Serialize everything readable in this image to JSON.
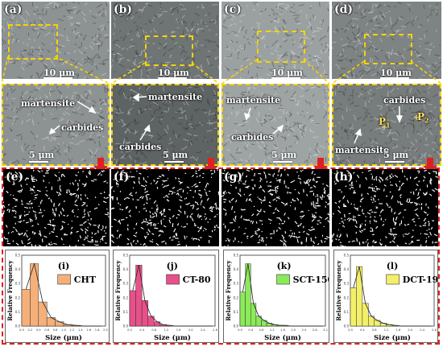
{
  "figure": {
    "panels_top": [
      {
        "label": "(a)",
        "scale": "10 μm"
      },
      {
        "label": "(b)",
        "scale": "10 μm"
      },
      {
        "label": "(c)",
        "scale": "10 μm"
      },
      {
        "label": "(d)",
        "scale": "10 μm"
      }
    ],
    "panels_zoom": [
      {
        "scale": "5 μm",
        "annotations": [
          "martensite",
          "carbides"
        ]
      },
      {
        "scale": "5 μm",
        "annotations": [
          "martensite",
          "carbides"
        ]
      },
      {
        "scale": "5 μm",
        "annotations": [
          "martensite",
          "carbides"
        ]
      },
      {
        "scale": "5 μm",
        "annotations": [
          "carbides",
          "martensite",
          "P",
          "P",
          "2",
          "1"
        ]
      }
    ],
    "panels_binary": [
      {
        "label": "(e)"
      },
      {
        "label": "(f)"
      },
      {
        "label": "(g)"
      },
      {
        "label": "(h)"
      }
    ],
    "colors": {
      "zoom_box": "#f5d400",
      "dashed_frame": "#e02020",
      "arrow": "#e02020"
    }
  },
  "chart_data": [
    {
      "type": "bar",
      "panel": "(i)",
      "legend": "CHT",
      "color": "#f5b07a",
      "xlabel": "Size (μm)",
      "ylabel": "Relative Frequency",
      "xticks": [
        "0.0",
        "0.2",
        "0.4",
        "0.6",
        "0.8",
        "1.0",
        "1.2",
        "1.4",
        "1.6",
        "1.8",
        "2.0"
      ],
      "yticks": [
        "0.0",
        "0.1",
        "0.2",
        "0.3",
        "0.4",
        "0.5"
      ],
      "xlim": [
        0,
        2.0
      ],
      "ylim": [
        0,
        0.5
      ],
      "bin_width": 0.2,
      "values": [
        0.26,
        0.44,
        0.17,
        0.06,
        0.03,
        0.01,
        0.005,
        0,
        0,
        0
      ]
    },
    {
      "type": "bar",
      "panel": "(j)",
      "legend": "CT-80",
      "color": "#e8508a",
      "xlabel": "Size (μm)",
      "ylabel": "Relative Frequency",
      "xticks": [
        "0.0",
        "0.4",
        "0.8",
        "1.2",
        "1.6",
        "2.0",
        "2.4",
        "2.8"
      ],
      "yticks": [
        "0.0",
        "0.1",
        "0.2",
        "0.3",
        "0.4",
        "0.5"
      ],
      "xlim": [
        0,
        2.8
      ],
      "ylim": [
        0,
        0.5
      ],
      "bin_width": 0.2,
      "values": [
        0.25,
        0.43,
        0.18,
        0.07,
        0.03,
        0.01,
        0.005,
        0,
        0,
        0,
        0,
        0,
        0,
        0
      ]
    },
    {
      "type": "bar",
      "panel": "(k)",
      "legend": "SCT-150",
      "color": "#8cea5a",
      "xlabel": "Size (μm)",
      "ylabel": "Relative Frequency",
      "xticks": [
        "0.0",
        "0.4",
        "0.8",
        "1.2",
        "1.6",
        "2.0",
        "2.4",
        "2.8",
        "3.2"
      ],
      "yticks": [
        "0.0",
        "0.1",
        "0.2",
        "0.3",
        "0.4",
        "0.5"
      ],
      "xlim": [
        0,
        3.2
      ],
      "ylim": [
        0,
        0.5
      ],
      "bin_width": 0.2,
      "values": [
        0.24,
        0.44,
        0.16,
        0.07,
        0.04,
        0.02,
        0.01,
        0.005,
        0.005,
        0,
        0,
        0,
        0,
        0,
        0,
        0
      ]
    },
    {
      "type": "bar",
      "panel": "(l)",
      "legend": "DCT-196",
      "color": "#f3ef6a",
      "xlabel": "Size (μm)",
      "ylabel": "Relative Frequency",
      "xticks": [
        "0.0",
        "0.4",
        "0.8",
        "1.2",
        "1.6",
        "2.0",
        "2.4",
        "2.8"
      ],
      "yticks": [
        "0.0",
        "0.1",
        "0.2",
        "0.3",
        "0.4",
        "0.5"
      ],
      "xlim": [
        0,
        2.8
      ],
      "ylim": [
        0,
        0.5
      ],
      "bin_width": 0.2,
      "values": [
        0.27,
        0.42,
        0.16,
        0.07,
        0.04,
        0.02,
        0.01,
        0.005,
        0,
        0,
        0,
        0,
        0,
        0
      ]
    }
  ]
}
